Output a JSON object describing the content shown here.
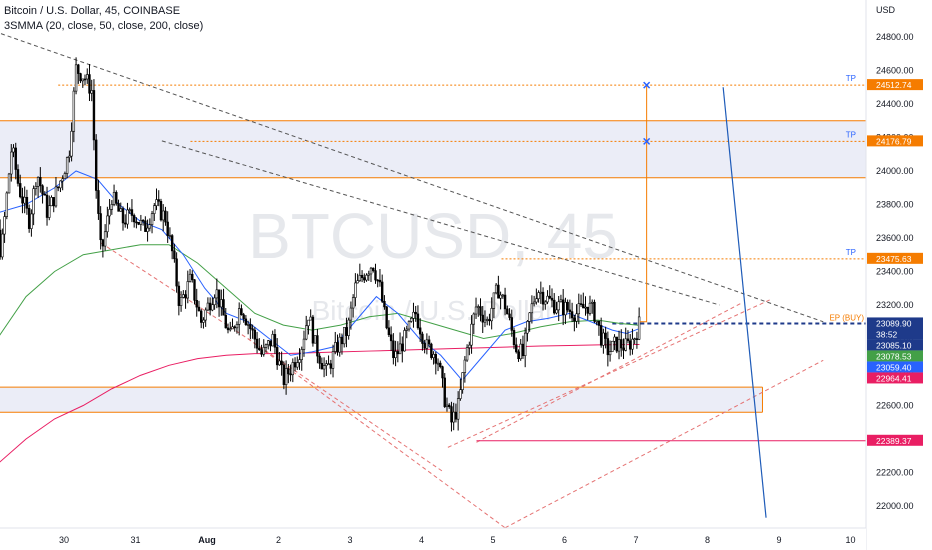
{
  "header": {
    "symbol_line": "Bitcoin / U.S. Dollar, 45, COINBASE",
    "indicator_line": "3SMMA (20, close, 50, close, 200, close)"
  },
  "watermark": {
    "ticker": "BTCUSD, 45",
    "name": "Bitcoin / U.S. Dollar"
  },
  "chart_data": {
    "type": "candlestick",
    "currency_label": "USD",
    "y_ticks": [
      22000,
      22200,
      22400,
      22600,
      22800,
      23000,
      23200,
      23400,
      23600,
      23800,
      24000,
      24200,
      24400,
      24600,
      24800
    ],
    "y_tick_labels": [
      "22000.00",
      "22200.00",
      "22400.00",
      "22600.00",
      "22800.00",
      "23000.00",
      "23200.00",
      "23400.00",
      "23600.00",
      "23800.00",
      "24000.00",
      "24200.00",
      "24400.00",
      "24600.00",
      "24800.00"
    ],
    "ylim": [
      21910,
      24910
    ],
    "xlim": [
      29.55,
      10.05
    ],
    "x_labels": [
      {
        "t": 30.0,
        "label": "30"
      },
      {
        "t": 31.0,
        "label": "31"
      },
      {
        "t": 32.0,
        "label": "Aug"
      },
      {
        "t": 33.0,
        "label": "2"
      },
      {
        "t": 34.0,
        "label": "3"
      },
      {
        "t": 35.0,
        "label": "4"
      },
      {
        "t": 36.0,
        "label": "5"
      },
      {
        "t": 37.0,
        "label": "6"
      },
      {
        "t": 38.0,
        "label": "7"
      },
      {
        "t": 39.0,
        "label": "8"
      },
      {
        "t": 40.0,
        "label": "9"
      },
      {
        "t": 41.0,
        "label": "10"
      }
    ],
    "price_path": [
      [
        29.1,
        23880
      ],
      [
        29.3,
        23650
      ],
      [
        29.4,
        23900
      ],
      [
        29.55,
        23500
      ],
      [
        29.7,
        24150
      ],
      [
        29.8,
        23900
      ],
      [
        29.95,
        23700
      ],
      [
        30.05,
        24000
      ],
      [
        30.2,
        23750
      ],
      [
        30.35,
        23900
      ],
      [
        30.5,
        24100
      ],
      [
        30.6,
        24610
      ],
      [
        30.72,
        24560
      ],
      [
        30.82,
        24480
      ],
      [
        30.88,
        23900
      ],
      [
        30.95,
        23500
      ],
      [
        31.1,
        23850
      ],
      [
        31.25,
        23700
      ],
      [
        31.4,
        23750
      ],
      [
        31.55,
        23650
      ],
      [
        31.7,
        23800
      ],
      [
        31.85,
        23720
      ],
      [
        31.95,
        23500
      ],
      [
        32.05,
        23200
      ],
      [
        32.2,
        23350
      ],
      [
        32.35,
        23100
      ],
      [
        32.55,
        23300
      ],
      [
        32.75,
        23000
      ],
      [
        32.9,
        23200
      ],
      [
        33.05,
        23050
      ],
      [
        33.2,
        22900
      ],
      [
        33.35,
        23000
      ],
      [
        33.5,
        22750
      ],
      [
        33.6,
        22820
      ],
      [
        33.75,
        22950
      ],
      [
        33.85,
        23150
      ],
      [
        33.95,
        22950
      ],
      [
        34.1,
        22800
      ],
      [
        34.25,
        22950
      ],
      [
        34.4,
        23050
      ],
      [
        34.5,
        23300
      ],
      [
        34.65,
        23400
      ],
      [
        34.75,
        23450
      ],
      [
        34.85,
        23300
      ],
      [
        34.95,
        23050
      ],
      [
        35.05,
        22880
      ],
      [
        35.2,
        23000
      ],
      [
        35.35,
        23150
      ],
      [
        35.5,
        22950
      ],
      [
        35.65,
        22900
      ],
      [
        35.75,
        22650
      ],
      [
        35.85,
        22500
      ],
      [
        35.95,
        22600
      ],
      [
        36.05,
        22900
      ],
      [
        36.2,
        23200
      ],
      [
        36.35,
        23100
      ],
      [
        36.5,
        23300
      ],
      [
        36.6,
        23200
      ],
      [
        36.75,
        22950
      ],
      [
        36.85,
        22900
      ],
      [
        36.95,
        23150
      ],
      [
        37.05,
        23300
      ],
      [
        37.15,
        23250
      ],
      [
        37.3,
        23200
      ],
      [
        37.45,
        23180
      ],
      [
        37.6,
        23150
      ],
      [
        37.75,
        23200
      ],
      [
        37.85,
        23150
      ],
      [
        37.95,
        23000
      ],
      [
        38.05,
        22920
      ],
      [
        38.15,
        22970
      ],
      [
        38.3,
        22950
      ],
      [
        38.4,
        23000
      ],
      [
        38.48,
        23089.9
      ]
    ],
    "sma_20": [
      [
        29.1,
        23700
      ],
      [
        29.5,
        23750
      ],
      [
        29.9,
        23800
      ],
      [
        30.3,
        23900
      ],
      [
        30.6,
        24000
      ],
      [
        30.9,
        23950
      ],
      [
        31.2,
        23800
      ],
      [
        31.5,
        23700
      ],
      [
        31.8,
        23650
      ],
      [
        32.1,
        23500
      ],
      [
        32.4,
        23300
      ],
      [
        32.7,
        23150
      ],
      [
        33.0,
        23100
      ],
      [
        33.3,
        23000
      ],
      [
        33.6,
        22900
      ],
      [
        33.9,
        22920
      ],
      [
        34.2,
        22950
      ],
      [
        34.5,
        23100
      ],
      [
        34.8,
        23250
      ],
      [
        35.1,
        23150
      ],
      [
        35.4,
        23000
      ],
      [
        35.7,
        22900
      ],
      [
        36.0,
        22750
      ],
      [
        36.3,
        22900
      ],
      [
        36.6,
        23050
      ],
      [
        36.9,
        23100
      ],
      [
        37.2,
        23120
      ],
      [
        37.5,
        23150
      ],
      [
        37.8,
        23100
      ],
      [
        38.1,
        23050
      ],
      [
        38.3,
        23030
      ],
      [
        38.48,
        23059.4
      ]
    ],
    "sma_50": [
      [
        29.1,
        22600
      ],
      [
        29.5,
        23000
      ],
      [
        29.9,
        23250
      ],
      [
        30.3,
        23400
      ],
      [
        30.7,
        23500
      ],
      [
        31.1,
        23530
      ],
      [
        31.5,
        23560
      ],
      [
        31.9,
        23560
      ],
      [
        32.3,
        23450
      ],
      [
        32.7,
        23300
      ],
      [
        33.1,
        23150
      ],
      [
        33.5,
        23080
      ],
      [
        33.9,
        23050
      ],
      [
        34.3,
        23080
      ],
      [
        34.7,
        23130
      ],
      [
        35.1,
        23150
      ],
      [
        35.5,
        23100
      ],
      [
        35.9,
        23050
      ],
      [
        36.3,
        23000
      ],
      [
        36.7,
        23030
      ],
      [
        37.1,
        23070
      ],
      [
        37.5,
        23100
      ],
      [
        37.9,
        23110
      ],
      [
        38.2,
        23090
      ],
      [
        38.48,
        23078.53
      ]
    ],
    "sma_200": [
      [
        29.1,
        22100
      ],
      [
        29.5,
        22250
      ],
      [
        29.9,
        22400
      ],
      [
        30.3,
        22520
      ],
      [
        30.7,
        22600
      ],
      [
        31.1,
        22700
      ],
      [
        31.5,
        22780
      ],
      [
        31.9,
        22840
      ],
      [
        32.3,
        22880
      ],
      [
        32.7,
        22900
      ],
      [
        33.1,
        22910
      ],
      [
        33.5,
        22910
      ],
      [
        33.9,
        22915
      ],
      [
        34.3,
        22920
      ],
      [
        34.7,
        22925
      ],
      [
        35.1,
        22930
      ],
      [
        35.5,
        22935
      ],
      [
        35.9,
        22940
      ],
      [
        36.3,
        22945
      ],
      [
        36.7,
        22950
      ],
      [
        37.1,
        22955
      ],
      [
        37.5,
        22958
      ],
      [
        37.9,
        22962
      ],
      [
        38.48,
        22964.41
      ]
    ],
    "zones": [
      {
        "from": 23960,
        "to": 24300
      },
      {
        "from": 22560,
        "to": 22710
      }
    ],
    "levels": [
      {
        "price": 24512.74,
        "label": "24512.74",
        "tp": "TP",
        "color": "#f57c00",
        "style": "dotted"
      },
      {
        "price": 24176.79,
        "label": "24176.79",
        "tp": "TP",
        "color": "#f57c00",
        "style": "dotted"
      },
      {
        "price": 23475.63,
        "label": "23475.63",
        "tp": "TP",
        "color": "#f57c00",
        "style": "dotted"
      },
      {
        "price": 23089.9,
        "label": "EP (BUY)",
        "color": "#1e3a8a",
        "style": "dashed"
      },
      {
        "price": 22389.37,
        "label": "22389.37",
        "color": "#e91e63",
        "style": "solid"
      }
    ],
    "price_labels": [
      {
        "price": 24512.74,
        "text": "24512.74",
        "bg": "#f57c00",
        "fg": "#ffffff"
      },
      {
        "price": 24176.79,
        "text": "24176.79",
        "bg": "#f57c00",
        "fg": "#ffffff"
      },
      {
        "price": 23475.63,
        "text": "23475.63",
        "bg": "#f57c00",
        "fg": "#ffffff"
      },
      {
        "price": 23089.9,
        "text": "23089.90",
        "bg": "#1e3a8a",
        "fg": "#ffffff",
        "sub": "38:52"
      },
      {
        "price": 23085.1,
        "text": "23085.10",
        "bg": "#1e3a8a",
        "fg": "#ffffff"
      },
      {
        "price": 23078.53,
        "text": "23078.53",
        "bg": "#43a047",
        "fg": "#ffffff"
      },
      {
        "price": 23059.4,
        "text": "23059.40",
        "bg": "#2962ff",
        "fg": "#ffffff"
      },
      {
        "price": 22964.41,
        "text": "22964.41",
        "bg": "#e91e63",
        "fg": "#ffffff"
      },
      {
        "price": 22389.37,
        "text": "22389.37",
        "bg": "#e91e63",
        "fg": "#ffffff"
      }
    ],
    "trendlines": [
      {
        "points": [
          [
            29.55,
            24820
          ],
          [
            41.05,
            23100
          ]
        ],
        "color": "#555555",
        "style": "dashed"
      },
      {
        "points": [
          [
            31.8,
            24180
          ],
          [
            39.6,
            23200
          ]
        ],
        "color": "#555555",
        "style": "dashed"
      },
      {
        "points": [
          [
            30.95,
            23570
          ],
          [
            33.0,
            23000
          ],
          [
            35.75,
            22200
          ]
        ],
        "color": "#e57373",
        "style": "dashed"
      },
      {
        "points": [
          [
            33.0,
            23000
          ],
          [
            36.6,
            21870
          ]
        ],
        "color": "#e57373",
        "style": "dashed"
      },
      {
        "points": [
          [
            36.6,
            21870
          ],
          [
            41.05,
            22870
          ]
        ],
        "color": "#e57373",
        "style": "dashed"
      },
      {
        "points": [
          [
            35.8,
            22350
          ],
          [
            40.3,
            23230
          ]
        ],
        "color": "#e57373",
        "style": "dashed"
      },
      {
        "points": [
          [
            36.2,
            22380
          ],
          [
            39.9,
            23210
          ]
        ],
        "color": "#e57373",
        "style": "dashed"
      }
    ],
    "projection": {
      "points": [
        [
          39.65,
          24500
        ],
        [
          40.25,
          21930
        ]
      ],
      "color": "#1e5bb8"
    },
    "target_path": {
      "points": [
        [
          38.48,
          23100
        ],
        [
          38.58,
          23100
        ],
        [
          38.58,
          24512.74
        ]
      ],
      "color": "#f57c00",
      "markers": [
        24512.74,
        24176.79
      ]
    }
  }
}
